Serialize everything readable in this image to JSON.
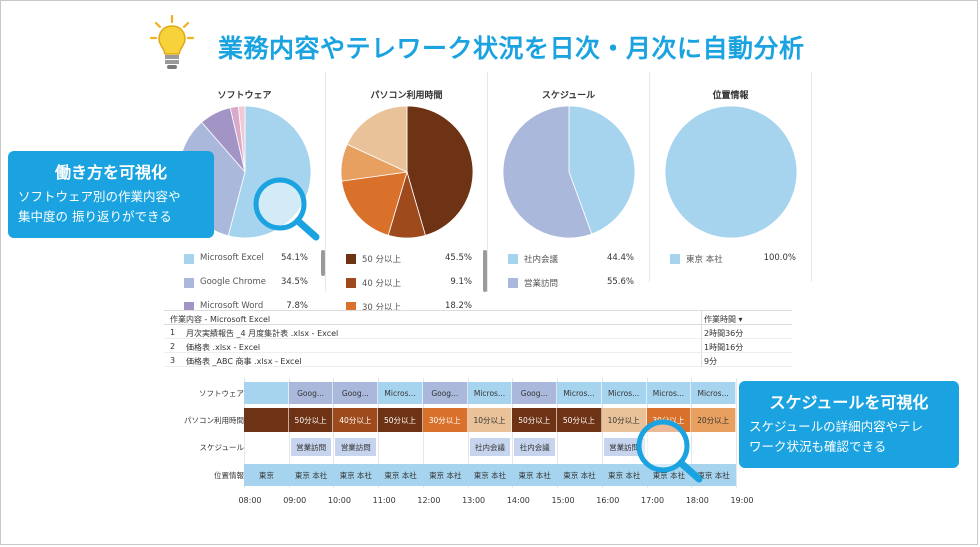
{
  "headline": "業務内容やテレワーク状況を日次・月次に自動分析",
  "panels": [
    {
      "title": "ソフトウェア",
      "legend": [
        {
          "label": "Microsoft Excel",
          "pct": "54.1%",
          "color": "#a6d4ef"
        },
        {
          "label": "Google Chrome",
          "pct": "34.5%",
          "color": "#aab8dc"
        },
        {
          "label": "Microsoft Word",
          "pct": "7.8%",
          "color": "#a394c6"
        }
      ],
      "slices": [
        {
          "value": 54.1,
          "color": "#a6d4ef"
        },
        {
          "value": 34.5,
          "color": "#aab8dc"
        },
        {
          "value": 7.8,
          "color": "#a394c6"
        },
        {
          "value": 2.0,
          "color": "#d8a9c9"
        },
        {
          "value": 1.6,
          "color": "#f0c9d5"
        }
      ]
    },
    {
      "title": "パソコン利用時間",
      "legend": [
        {
          "label": "50 分以上",
          "pct": "45.5%",
          "color": "#6e3214"
        },
        {
          "label": "40 分以上",
          "pct": "9.1%",
          "color": "#9e4a1c"
        },
        {
          "label": "30 分以上",
          "pct": "18.2%",
          "color": "#d9712b"
        }
      ],
      "slices": [
        {
          "value": 45.5,
          "color": "#6e3214"
        },
        {
          "value": 9.1,
          "color": "#9e4a1c"
        },
        {
          "value": 18.2,
          "color": "#d9712b"
        },
        {
          "value": 9.1,
          "color": "#e8a060"
        },
        {
          "value": 18.1,
          "color": "#e9c29a"
        }
      ]
    },
    {
      "title": "スケジュール",
      "legend": [
        {
          "label": "社内会議",
          "pct": "44.4%",
          "color": "#a6d4ef"
        },
        {
          "label": "営業訪問",
          "pct": "55.6%",
          "color": "#aab8dc"
        }
      ],
      "slices": [
        {
          "value": 44.4,
          "color": "#a6d4ef"
        },
        {
          "value": 55.6,
          "color": "#aab8dc"
        }
      ]
    },
    {
      "title": "位置情報",
      "legend": [
        {
          "label": "東京 本社",
          "pct": "100.0%",
          "color": "#a6d4ef"
        }
      ],
      "slices": [
        {
          "value": 100,
          "color": "#a6d4ef"
        }
      ]
    }
  ],
  "callout_left": {
    "title": "働き方を可視化",
    "line1": "ソフトウェア別の作業内容や",
    "line2": "集中度の 振り返りができる"
  },
  "callout_right": {
    "title": "スケジュールを可視化",
    "line1": "スケジュールの詳細内容やテレ",
    "line2": "ワーク状況も確認できる"
  },
  "table": {
    "header_task": "作業内容 -   Microsoft Excel",
    "header_time": "作業時間 ▾",
    "rows": [
      {
        "num": "1",
        "task": "月次実績報告 _4 月度集計表 .xlsx - Excel",
        "time": "2時間36分"
      },
      {
        "num": "2",
        "task": "価格表 .xlsx - Excel",
        "time": "1時間16分"
      },
      {
        "num": "3",
        "task": "価格表 _ABC 商事 .xlsx - Excel",
        "time": "9分"
      }
    ]
  },
  "timeline": {
    "row_labels": [
      "ソフトウェア",
      "パソコン利用時間",
      "スケジュール",
      "位置情報"
    ],
    "software": [
      {
        "label": "",
        "color": "#a6d4ef"
      },
      {
        "label": "Goog...",
        "color": "#aab8dc"
      },
      {
        "label": "Goog...",
        "color": "#aab8dc"
      },
      {
        "label": "Micros...",
        "color": "#a6d4ef"
      },
      {
        "label": "Goog...",
        "color": "#aab8dc"
      },
      {
        "label": "Micros...",
        "color": "#a6d4ef"
      },
      {
        "label": "Goog...",
        "color": "#aab8dc"
      },
      {
        "label": "Micros...",
        "color": "#a6d4ef"
      },
      {
        "label": "Micros...",
        "color": "#a6d4ef"
      },
      {
        "label": "Micros...",
        "color": "#a6d4ef"
      },
      {
        "label": "Micros...",
        "color": "#a6d4ef"
      }
    ],
    "pc_usage": [
      {
        "label": "",
        "color": "#6e3214"
      },
      {
        "label": "50分以上",
        "color": "#6e3214"
      },
      {
        "label": "40分以上",
        "color": "#9e4a1c"
      },
      {
        "label": "50分以上",
        "color": "#6e3214"
      },
      {
        "label": "30分以上",
        "color": "#d9712b"
      },
      {
        "label": "10分以上",
        "color": "#e9c29a"
      },
      {
        "label": "50分以上",
        "color": "#6e3214"
      },
      {
        "label": "50分以上",
        "color": "#6e3214"
      },
      {
        "label": "10分以上",
        "color": "#e9c29a"
      },
      {
        "label": "30分以上",
        "color": "#d9712b"
      },
      {
        "label": "20分以上",
        "color": "#e8a060"
      }
    ],
    "schedule": [
      {
        "label": "営業訪問",
        "slot": 1
      },
      {
        "label": "営業訪問",
        "slot": 2
      },
      {
        "label": "社内会議",
        "slot": 5
      },
      {
        "label": "社内会議",
        "slot": 6
      },
      {
        "label": "営業訪問",
        "slot": 8
      }
    ],
    "location": [
      "東京",
      "東京 本社",
      "東京 本社",
      "東京 本社",
      "東京 本社",
      "東京 本社",
      "東京 本社",
      "東京 本社",
      "東京 本社",
      "東京 本社",
      "東京 本社"
    ],
    "hours": [
      "08:00",
      "09:00",
      "10:00",
      "11:00",
      "12:00",
      "13:00",
      "14:00",
      "15:00",
      "16:00",
      "17:00",
      "18:00",
      "19:00"
    ]
  }
}
